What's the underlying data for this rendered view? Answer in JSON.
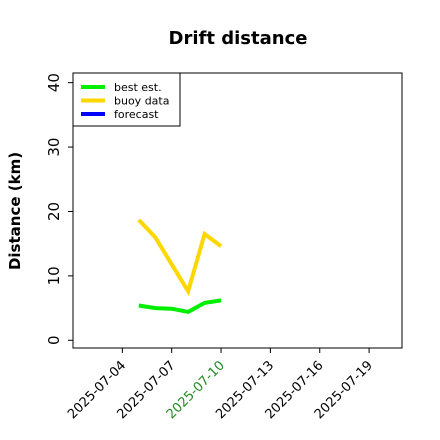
{
  "chart_data": {
    "type": "line",
    "title": "Drift distance",
    "y_label": "Distance (km)",
    "x": [
      "2025-07-05",
      "2025-07-06",
      "2025-07-07",
      "2025-07-08",
      "2025-07-09",
      "2025-07-10"
    ],
    "series": [
      {
        "name": "best est.",
        "color": "#00ee00",
        "values": [
          5.4,
          5.0,
          4.9,
          4.4,
          5.8,
          6.2
        ]
      },
      {
        "name": "buoy data",
        "color": "#ffd700",
        "values": [
          18.7,
          16.0,
          11.8,
          7.6,
          16.5,
          14.6
        ]
      },
      {
        "name": "forecast",
        "color": "#0000ff",
        "values": [
          null,
          null,
          null,
          null,
          null,
          null
        ]
      }
    ],
    "xlim": [
      "2025-07-01",
      "2025-07-21"
    ],
    "xticks": [
      "2025-07-04",
      "2025-07-07",
      "2025-07-10",
      "2025-07-13",
      "2025-07-16",
      "2025-07-19"
    ],
    "highlight_xtick": 2,
    "highlight_color": "#228b22",
    "ylim": [
      -1.2,
      41.5
    ],
    "yticks": [
      0,
      10,
      20,
      30,
      40
    ],
    "grid": false,
    "legend": "upper-left"
  }
}
